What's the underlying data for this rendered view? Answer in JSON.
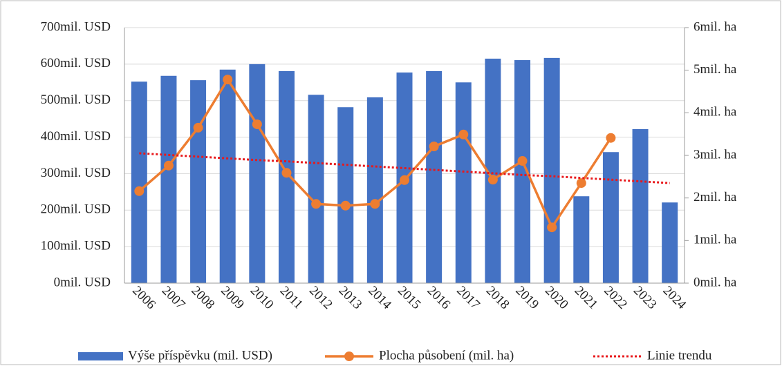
{
  "chart_data": {
    "type": "bar_line",
    "categories": [
      "2006",
      "2007",
      "2008",
      "2009",
      "2010",
      "2011",
      "2012",
      "2013",
      "2014",
      "2015",
      "2016",
      "2017",
      "2018",
      "2019",
      "2020",
      "2021",
      "2022",
      "2023",
      "2024"
    ],
    "series": [
      {
        "name": "Výše příspěvku (mil. USD)",
        "color": "#4472c4",
        "type": "bar",
        "values": [
          552,
          568,
          556,
          585,
          600,
          581,
          516,
          482,
          509,
          577,
          581,
          550,
          615,
          611,
          617,
          238,
          359,
          422,
          221
        ]
      },
      {
        "name": "Plocha působení (mil. ha)",
        "color": "#ed7d31",
        "type": "line",
        "axis": "y2",
        "values": [
          2.16,
          2.76,
          3.65,
          4.78,
          3.73,
          2.59,
          1.86,
          1.82,
          1.86,
          2.42,
          3.21,
          3.49,
          2.43,
          2.87,
          1.31,
          2.35,
          3.41,
          null,
          null
        ]
      },
      {
        "name": "Linie trendu",
        "color": "#e8191c",
        "type": "trend",
        "axis": "y2",
        "values": [
          3.05,
          3.01,
          2.97,
          2.93,
          2.89,
          2.86,
          2.82,
          2.78,
          2.74,
          2.7,
          2.66,
          2.62,
          2.58,
          2.54,
          2.51,
          2.47,
          2.43,
          2.39,
          2.35
        ]
      }
    ],
    "ylim": [
      0,
      700
    ],
    "yticks": [
      {
        "value": 0,
        "label": "0mil. USD"
      },
      {
        "value": 100,
        "label": "100mil. USD"
      },
      {
        "value": 200,
        "label": "200mil. USD"
      },
      {
        "value": 300,
        "label": "300mil. USD"
      },
      {
        "value": 400,
        "label": "400mil. USD"
      },
      {
        "value": 500,
        "label": "500mil. USD"
      },
      {
        "value": 600,
        "label": "600mil. USD"
      },
      {
        "value": 700,
        "label": "700mil. USD"
      }
    ],
    "y2lim": [
      0,
      6
    ],
    "y2ticks": [
      {
        "value": 0,
        "label": "0mil. ha"
      },
      {
        "value": 1,
        "label": "1mil. ha"
      },
      {
        "value": 2,
        "label": "2mil. ha"
      },
      {
        "value": 3,
        "label": "3mil. ha"
      },
      {
        "value": 4,
        "label": "4mil. ha"
      },
      {
        "value": 5,
        "label": "5mil. ha"
      },
      {
        "value": 6,
        "label": "6mil. ha"
      }
    ],
    "grid": true,
    "legend": "bottom"
  }
}
